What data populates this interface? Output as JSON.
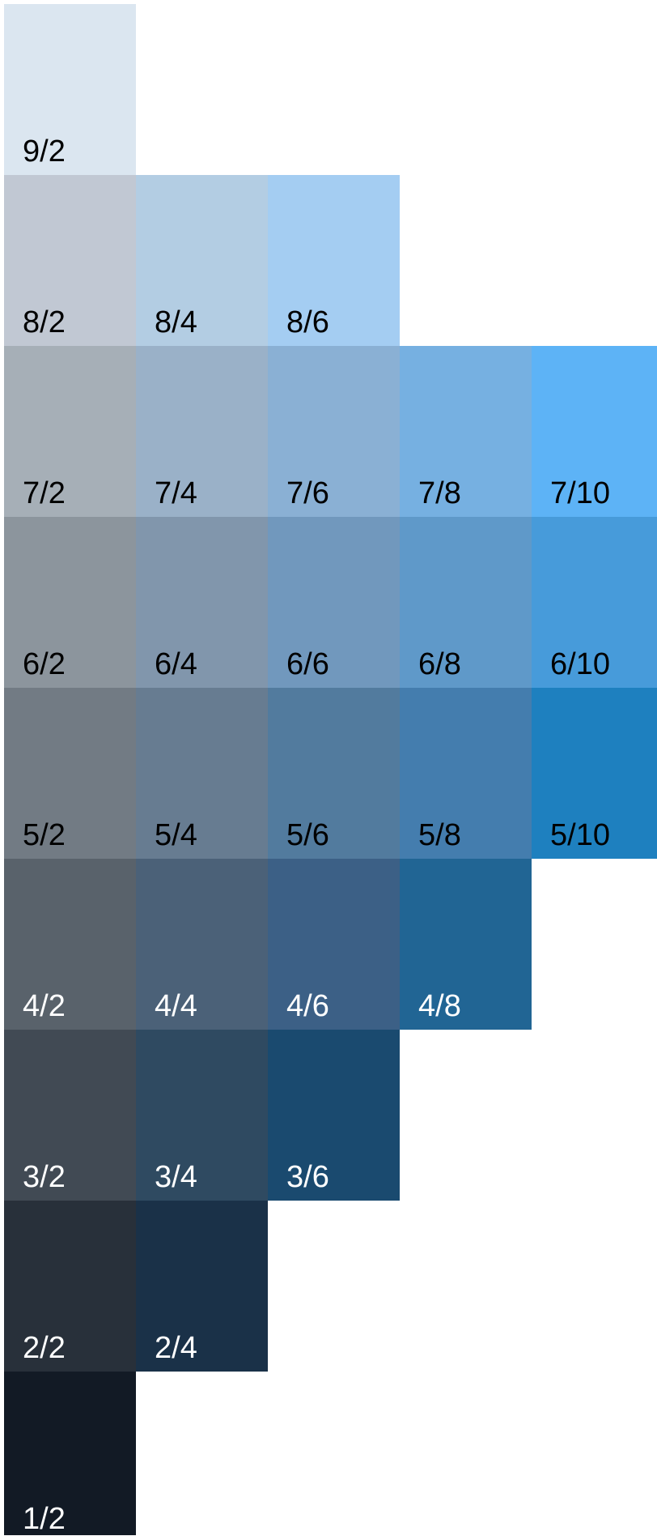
{
  "rows": [
    {
      "value": 9,
      "swatches": [
        {
          "label": "9/2",
          "color": "#dbe6f0",
          "text_color": "#000000"
        }
      ]
    },
    {
      "value": 8,
      "swatches": [
        {
          "label": "8/2",
          "color": "#c1c8d3",
          "text_color": "#000000"
        },
        {
          "label": "8/4",
          "color": "#b3cde3",
          "text_color": "#000000"
        },
        {
          "label": "8/6",
          "color": "#a4cdf2",
          "text_color": "#000000"
        }
      ]
    },
    {
      "value": 7,
      "swatches": [
        {
          "label": "7/2",
          "color": "#a6afb7",
          "text_color": "#000000"
        },
        {
          "label": "7/4",
          "color": "#9ab1c8",
          "text_color": "#000000"
        },
        {
          "label": "7/6",
          "color": "#8ab0d4",
          "text_color": "#000000"
        },
        {
          "label": "7/8",
          "color": "#76b0e1",
          "text_color": "#000000"
        },
        {
          "label": "7/10",
          "color": "#5db3f6",
          "text_color": "#000000"
        }
      ]
    },
    {
      "value": 6,
      "swatches": [
        {
          "label": "6/2",
          "color": "#8c959d",
          "text_color": "#000000"
        },
        {
          "label": "6/4",
          "color": "#8196ac",
          "text_color": "#000000"
        },
        {
          "label": "6/6",
          "color": "#7198bd",
          "text_color": "#000000"
        },
        {
          "label": "6/8",
          "color": "#5f99c9",
          "text_color": "#000000"
        },
        {
          "label": "6/10",
          "color": "#479bda",
          "text_color": "#000000"
        }
      ]
    },
    {
      "value": 5,
      "swatches": [
        {
          "label": "5/2",
          "color": "#727b84",
          "text_color": "#000000"
        },
        {
          "label": "5/4",
          "color": "#677c91",
          "text_color": "#000000"
        },
        {
          "label": "5/6",
          "color": "#527b9e",
          "text_color": "#000000"
        },
        {
          "label": "5/8",
          "color": "#447dae",
          "text_color": "#000000"
        },
        {
          "label": "5/10",
          "color": "#1e80bf",
          "text_color": "#000000"
        }
      ]
    },
    {
      "value": 4,
      "swatches": [
        {
          "label": "4/2",
          "color": "#59626b",
          "text_color": "#ffffff"
        },
        {
          "label": "4/4",
          "color": "#4b6178",
          "text_color": "#ffffff"
        },
        {
          "label": "4/6",
          "color": "#3c6086",
          "text_color": "#ffffff"
        },
        {
          "label": "4/8",
          "color": "#216594",
          "text_color": "#ffffff"
        }
      ]
    },
    {
      "value": 3,
      "swatches": [
        {
          "label": "3/2",
          "color": "#414a54",
          "text_color": "#ffffff"
        },
        {
          "label": "3/4",
          "color": "#2f4a61",
          "text_color": "#ffffff"
        },
        {
          "label": "3/6",
          "color": "#1a4a6f",
          "text_color": "#ffffff"
        }
      ]
    },
    {
      "value": 2,
      "swatches": [
        {
          "label": "2/2",
          "color": "#28303a",
          "text_color": "#ffffff"
        },
        {
          "label": "2/4",
          "color": "#1a3148",
          "text_color": "#ffffff"
        }
      ]
    },
    {
      "value": 1,
      "swatches": [
        {
          "label": "1/2",
          "color": "#121a25",
          "text_color": "#ffffff"
        }
      ]
    }
  ]
}
